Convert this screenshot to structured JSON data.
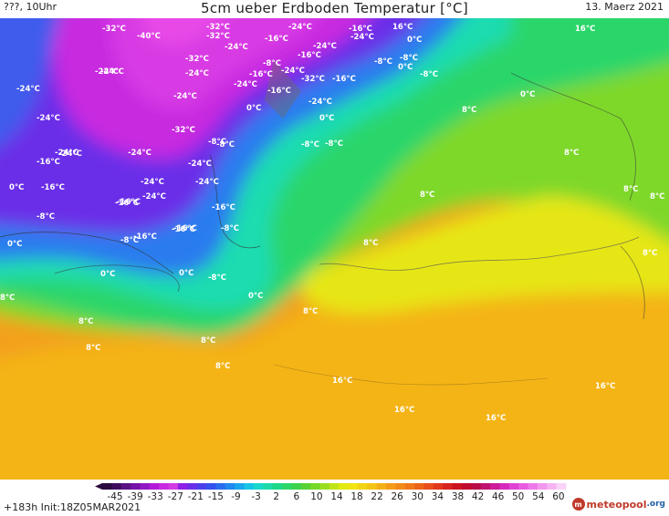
{
  "header": {
    "left": "???, 10Uhr",
    "title": "5cm ueber Erdboden Temperatur [°C]",
    "date": "13. Maerz 2021"
  },
  "footer": {
    "run_info": "+183h  Init:18Z05MAR2021",
    "logo_main": "meteopool",
    "logo_tld": ".org"
  },
  "colorbar": {
    "tick_labels": [
      "-45",
      "-39",
      "-33",
      "-27",
      "-21",
      "-15",
      "-9",
      "-3",
      "2",
      "6",
      "10",
      "14",
      "18",
      "22",
      "26",
      "30",
      "34",
      "38",
      "42",
      "46",
      "50",
      "54",
      "60"
    ],
    "colors": [
      "#2b0a3d",
      "#3f0c5e",
      "#5a1184",
      "#7512a8",
      "#9218c4",
      "#b01ad8",
      "#c82ae0",
      "#d23ae2",
      "#8d1fe6",
      "#6a2ee8",
      "#4b3fea",
      "#3550ec",
      "#2a6cee",
      "#2088ee",
      "#18a6ec",
      "#16c4e6",
      "#18d8cc",
      "#1edcaa",
      "#1ed888",
      "#2ad66a",
      "#3cd24c",
      "#58d236",
      "#76d828",
      "#9ade20",
      "#c0e418",
      "#e2ea10",
      "#f0e412",
      "#f2d414",
      "#f4c414",
      "#f4b016",
      "#f49c18",
      "#f28a18",
      "#f07818",
      "#ec6418",
      "#e84e1a",
      "#e2381c",
      "#d8241e",
      "#cc1420",
      "#c00c2e",
      "#b80c46",
      "#c01070",
      "#cc1a98",
      "#d62abc",
      "#e042d4",
      "#e85ce0",
      "#ee78e8",
      "#f296ee",
      "#f6b4f2",
      "#fad2f8"
    ]
  },
  "map_labels": [
    {
      "text": "-32°C",
      "value": -32
    },
    {
      "text": "-40°C",
      "value": -40
    },
    {
      "text": "-32°C",
      "value": -32
    },
    {
      "text": "-32°C",
      "value": -32
    },
    {
      "text": "-24°C",
      "value": -24
    },
    {
      "text": "-24°C",
      "value": -24
    },
    {
      "text": "-16°C",
      "value": -16
    },
    {
      "text": "-24°C",
      "value": -24
    },
    {
      "text": "-16°C",
      "value": -16
    },
    {
      "text": "-24°C",
      "value": -24
    },
    {
      "text": "-32°C",
      "value": -32
    },
    {
      "text": "-24°C",
      "value": -24
    },
    {
      "text": "-16°C",
      "value": -16
    },
    {
      "text": "0°C",
      "value": 0
    },
    {
      "text": "0°C",
      "value": 0
    },
    {
      "text": "-16°C",
      "value": -16
    },
    {
      "text": "-24°C",
      "value": -24
    },
    {
      "text": "-32°C",
      "value": -32
    },
    {
      "text": "-24°C",
      "value": -24
    },
    {
      "text": "-8°C",
      "value": -8
    },
    {
      "text": "-24°C",
      "value": -24
    },
    {
      "text": "-24°C",
      "value": -24
    },
    {
      "text": "-8°C",
      "value": -8
    },
    {
      "text": "-16°C",
      "value": -16
    },
    {
      "text": "-24°C",
      "value": -24
    },
    {
      "text": "-24°C",
      "value": -24
    },
    {
      "text": "-8°C",
      "value": -8
    },
    {
      "text": "-8°C",
      "value": -8
    },
    {
      "text": "-8°C",
      "value": -8
    },
    {
      "text": "-16°C",
      "value": -16
    },
    {
      "text": "0°C",
      "value": 0
    },
    {
      "text": "-24°C",
      "value": -24
    },
    {
      "text": "-24°C",
      "value": -24
    },
    {
      "text": "-16°C",
      "value": -16
    },
    {
      "text": "-24°C",
      "value": -24
    },
    {
      "text": "-16°C",
      "value": -16
    },
    {
      "text": "-24°C",
      "value": -24
    },
    {
      "text": "-32°C",
      "value": -32
    },
    {
      "text": "-24°C",
      "value": -24
    },
    {
      "text": "-8°C",
      "value": -8
    },
    {
      "text": "0°C",
      "value": 0
    },
    {
      "text": "-8°C",
      "value": -8
    },
    {
      "text": "-24°C",
      "value": -24
    },
    {
      "text": "-24°C",
      "value": -24
    },
    {
      "text": "-24°C",
      "value": -24
    },
    {
      "text": "-24°C",
      "value": -24
    },
    {
      "text": "-16°C",
      "value": -16
    },
    {
      "text": "-16°C",
      "value": -16
    },
    {
      "text": "-16°C",
      "value": -16
    },
    {
      "text": "-8°C",
      "value": -8
    },
    {
      "text": "-16°C",
      "value": -16
    },
    {
      "text": "0°C",
      "value": 0
    },
    {
      "text": "-8°C",
      "value": -8
    },
    {
      "text": "-8°C",
      "value": -8
    },
    {
      "text": "-16°C",
      "value": -16
    },
    {
      "text": "-8°C",
      "value": -8
    },
    {
      "text": "0°C",
      "value": 0
    },
    {
      "text": "0°C",
      "value": 0
    },
    {
      "text": "0°C",
      "value": 0
    },
    {
      "text": "-8°C",
      "value": -8
    },
    {
      "text": "0°C",
      "value": 0
    },
    {
      "text": "8°C",
      "value": 8
    },
    {
      "text": "8°C",
      "value": 8
    },
    {
      "text": "8°C",
      "value": 8
    },
    {
      "text": "8°C",
      "value": 8
    },
    {
      "text": "8°C",
      "value": 8
    },
    {
      "text": "8°C",
      "value": 8
    },
    {
      "text": "8°C",
      "value": 8
    },
    {
      "text": "8°C",
      "value": 8
    },
    {
      "text": "8°C",
      "value": 8
    },
    {
      "text": "8°C",
      "value": 8
    },
    {
      "text": "8°C",
      "value": 8
    },
    {
      "text": "8°C",
      "value": 8
    },
    {
      "text": "8°C",
      "value": 8
    },
    {
      "text": "16°C",
      "value": 16
    },
    {
      "text": "16°C",
      "value": 16
    },
    {
      "text": "16°C",
      "value": 16
    },
    {
      "text": "16°C",
      "value": 16
    },
    {
      "text": "16°C",
      "value": 16
    },
    {
      "text": "16°C",
      "value": 16
    },
    {
      "text": "0°C",
      "value": 0
    },
    {
      "text": "-16°C",
      "value": -16
    }
  ]
}
